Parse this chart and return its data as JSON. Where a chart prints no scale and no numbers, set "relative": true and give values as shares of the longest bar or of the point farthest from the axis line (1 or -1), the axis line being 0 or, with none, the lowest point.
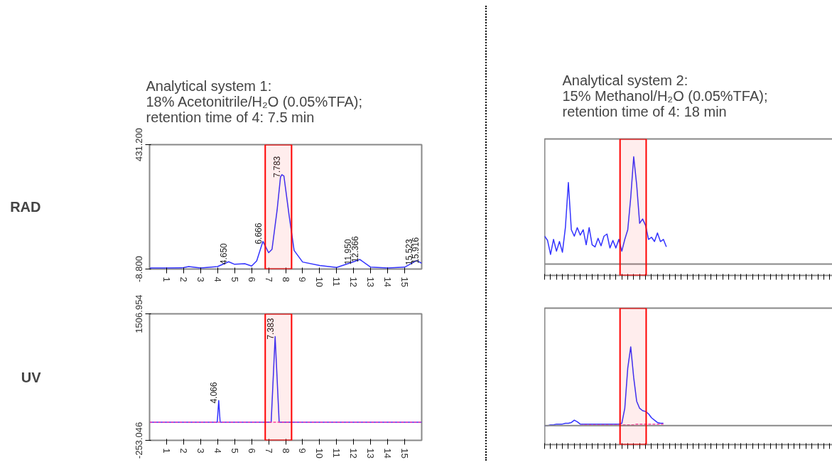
{
  "chart_data": [
    {
      "type": "line",
      "title": "Analytical system 1:\n18% Acetonitrile/H₂O (0.05%TFA);\nretention time of 4: 7.5 min",
      "ylabel": "RAD",
      "grid": false,
      "xlim": [
        0,
        16
      ],
      "ylim": [
        -8.8,
        431.2
      ],
      "xticks": [
        1,
        2,
        3,
        4,
        5,
        6,
        7,
        8,
        9,
        10,
        11,
        12,
        13,
        14,
        15
      ],
      "yticks": [
        {
          "value": -8.8,
          "label": "-8.800"
        },
        {
          "value": 431.2,
          "label": "431.200"
        }
      ],
      "series": [
        {
          "color": "#3333ff",
          "x": [
            0,
            1,
            2,
            2.3,
            3,
            4,
            4.65,
            5,
            5.6,
            6,
            6.3,
            6.666,
            7,
            7.2,
            7.5,
            7.7,
            7.783,
            7.9,
            8.2,
            8.5,
            9,
            10,
            11,
            12,
            12.366,
            13,
            14,
            15,
            15.7,
            16
          ],
          "values": [
            -5,
            -5,
            -4,
            0,
            -5,
            0,
            17,
            8,
            10,
            2,
            20,
            89,
            49,
            61,
            200,
            317,
            325,
            320,
            183,
            57,
            16,
            4,
            -3,
            17,
            25,
            -2,
            -5,
            -2,
            21,
            12
          ]
        }
      ],
      "annotations": [
        {
          "text": "4.650",
          "x": 4.65,
          "y": 17
        },
        {
          "text": "6.666",
          "x": 6.666,
          "y": 89
        },
        {
          "text": "7.783",
          "x": 7.783,
          "y": 325
        },
        {
          "text": "11.950",
          "x": 11.95,
          "y": 17
        },
        {
          "text": "12.366",
          "x": 12.366,
          "y": 25
        },
        {
          "text": "15.523",
          "x": 15.523,
          "y": 15
        },
        {
          "text": "15.916",
          "x": 15.916,
          "y": 21
        }
      ],
      "bands": [
        {
          "axis": "x",
          "from": 6.8,
          "to": 8.35,
          "color": "#ff0000"
        }
      ]
    },
    {
      "type": "line",
      "title": "Analytical system 2:\n15% Methanol/H₂O (0.05%TFA);\nretention time of 4: 18 min",
      "relative": true,
      "grid": false,
      "categories": [
        null,
        null,
        null,
        null,
        null,
        null,
        null,
        null,
        null,
        null,
        null,
        null,
        null,
        null,
        null,
        null,
        null,
        null,
        null,
        null,
        null,
        null,
        null,
        null,
        null,
        null,
        null,
        null,
        null,
        null,
        null,
        null,
        null,
        null,
        null,
        null,
        null,
        null,
        null,
        null,
        null,
        null,
        null,
        null,
        null,
        null,
        null,
        null,
        null,
        null,
        null,
        null,
        null,
        null,
        null,
        null,
        null,
        null,
        null,
        null,
        null,
        null,
        null,
        null,
        null,
        null,
        null,
        null,
        null,
        null,
        null,
        null,
        null,
        null,
        null,
        null,
        null,
        null,
        null,
        null,
        null,
        null,
        null,
        null,
        null,
        null,
        null,
        null,
        null,
        null,
        null,
        null,
        null,
        null,
        null,
        null,
        null,
        null,
        null,
        null
      ],
      "series": [
        {
          "color": "#3333ff",
          "values": [
            0.26,
            0.22,
            0.09,
            0.23,
            0.12,
            0.21,
            0.11,
            0.34,
            0.76,
            0.32,
            0.26,
            0.34,
            0.27,
            0.32,
            0.18,
            0.34,
            0.18,
            0.16,
            0.24,
            0.17,
            0.26,
            0.28,
            0.15,
            0.22,
            0.15,
            0.23,
            0.12,
            0.23,
            0.32,
            0.62,
            1,
            0.74,
            0.38,
            0.42,
            0.36,
            0.23,
            0.25,
            0.21,
            0.29,
            0.21,
            0.23,
            0.16,
            null,
            null,
            null,
            null,
            null,
            null,
            null,
            null,
            null,
            null,
            null,
            null,
            null,
            null,
            null,
            null,
            null,
            null,
            null,
            null,
            null,
            null,
            null,
            null,
            null,
            null,
            null,
            null,
            null,
            null,
            null,
            null,
            null,
            null,
            null,
            null,
            null,
            null,
            null,
            null,
            null,
            null,
            null,
            null,
            null,
            null,
            null,
            null,
            null,
            null,
            null,
            null,
            null,
            null,
            null,
            null,
            null,
            null
          ]
        }
      ]
    },
    {
      "type": "line",
      "ylabel": "UV",
      "grid": false,
      "xlim": [
        0,
        16
      ],
      "ylim": [
        -253.046,
        1506.954
      ],
      "xticks": [
        1,
        2,
        3,
        4,
        5,
        6,
        7,
        8,
        9,
        10,
        11,
        12,
        13,
        14,
        15
      ],
      "yticks": [
        {
          "value": -253.046,
          "label": "-253.046"
        },
        {
          "value": 1506.954,
          "label": "1506.954"
        }
      ],
      "series": [
        {
          "color": "#3333ff",
          "x": [
            0,
            3.98,
            4.066,
            4.15,
            7.15,
            7.383,
            7.62,
            16
          ],
          "values": [
            0,
            0,
            300,
            0,
            0,
            1190,
            0,
            0
          ]
        },
        {
          "color": "#ff44aa",
          "line_style": "dashed",
          "x": [
            0,
            16
          ],
          "values": [
            0,
            0
          ]
        }
      ],
      "annotations": [
        {
          "text": "4.066",
          "x": 4.066,
          "y": 300
        },
        {
          "text": "7.383",
          "x": 7.383,
          "y": 1190
        }
      ],
      "bands": [
        {
          "axis": "x",
          "from": 6.8,
          "to": 8.35,
          "color": "#ff0000"
        }
      ]
    },
    {
      "type": "line",
      "relative": true,
      "grid": false,
      "categories": [
        null,
        null,
        null,
        null,
        null,
        null,
        null,
        null,
        null,
        null,
        null,
        null,
        null,
        null,
        null,
        null,
        null,
        null,
        null,
        null,
        null,
        null,
        null,
        null,
        null,
        null,
        null,
        null,
        null,
        null,
        null,
        null,
        null,
        null,
        null,
        null,
        null,
        null,
        null,
        null,
        null,
        null,
        null,
        null,
        null,
        null,
        null,
        null,
        null,
        null,
        null,
        null,
        null,
        null,
        null,
        null,
        null,
        null,
        null,
        null,
        null,
        null,
        null,
        null,
        null,
        null,
        null,
        null,
        null,
        null,
        null,
        null,
        null,
        null,
        null,
        null,
        null,
        null,
        null,
        null,
        null,
        null,
        null,
        null,
        null,
        null,
        null,
        null,
        null,
        null,
        null,
        null,
        null,
        null,
        null,
        null,
        null,
        null,
        null,
        null
      ],
      "series": [
        {
          "color": "#3333ff",
          "values": [
            0,
            0,
            0.01,
            0.01,
            0.02,
            0.02,
            0.02,
            0.03,
            0.03,
            0.04,
            0.07,
            0.05,
            0.02,
            0.02,
            0.02,
            0.02,
            0.02,
            0.02,
            0.02,
            0.02,
            0.02,
            0.02,
            0.02,
            0.02,
            0.02,
            0.02,
            0.03,
            0.22,
            0.73,
            1,
            0.61,
            0.31,
            0.22,
            0.19,
            0.18,
            0.15,
            0.1,
            0.07,
            0.04,
            0.03,
            0.03,
            null,
            null,
            null,
            null,
            null,
            null,
            null,
            null,
            null,
            null,
            null,
            null,
            null,
            null,
            null,
            null,
            null,
            null,
            null,
            null,
            null,
            null,
            null,
            null,
            null,
            null,
            null,
            null,
            null,
            null,
            null,
            null,
            null,
            null,
            null,
            null,
            null,
            null,
            null,
            null,
            null,
            null,
            null,
            null,
            null,
            null,
            null,
            null,
            null,
            null,
            null,
            null,
            null,
            null,
            null,
            null,
            null,
            null,
            null
          ]
        },
        {
          "color": "#ff44aa",
          "line_style": "dashed",
          "values": [
            null,
            null,
            null,
            null,
            null,
            null,
            null,
            null,
            null,
            null,
            null,
            null,
            0,
            0.01,
            0.01,
            0.01,
            0.01,
            0.01,
            0.01,
            0.01,
            0.01,
            0.01,
            0.01,
            0.01,
            0.01,
            0.01,
            0.01,
            0.01,
            0.01,
            0.01,
            0.01,
            0.02,
            0.02,
            0.02,
            0.02,
            0.02,
            0.02,
            0.02,
            0.02,
            0.02,
            0.02,
            null,
            null,
            null,
            null,
            null,
            null,
            null,
            null,
            null,
            null,
            null,
            null,
            null,
            null,
            null,
            null,
            null,
            null,
            null,
            null,
            null,
            null,
            null,
            null,
            null,
            null,
            null,
            null,
            null,
            null,
            null,
            null,
            null,
            null,
            null,
            null,
            null,
            null,
            null,
            null,
            null,
            null,
            null,
            null,
            null,
            null,
            null,
            null,
            null,
            null,
            null,
            null,
            null,
            null,
            null,
            null,
            null,
            null,
            null
          ]
        }
      ]
    }
  ]
}
